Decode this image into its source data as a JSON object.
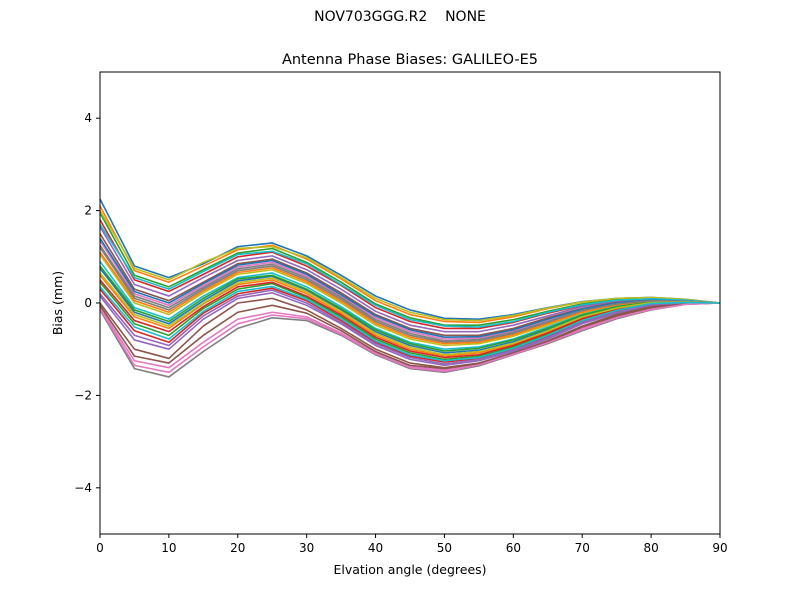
{
  "suptitle": "NOV703GGG.R2    NONE",
  "chart_data": {
    "type": "line",
    "title": "Antenna Phase Biases: GALILEO-E5",
    "xlabel": "Elvation angle (degrees)",
    "ylabel": "Bias (mm)",
    "xlim": [
      0,
      90
    ],
    "ylim": [
      -5,
      5
    ],
    "xticks": [
      0,
      10,
      20,
      30,
      40,
      50,
      60,
      70,
      80,
      90
    ],
    "yticks": [
      -4,
      -2,
      0,
      2,
      4
    ],
    "ytick_labels": [
      "−4",
      "−2",
      "0",
      "2",
      "4"
    ],
    "grid": false,
    "legend": "none",
    "x": [
      0,
      5,
      10,
      15,
      20,
      25,
      30,
      35,
      40,
      45,
      50,
      55,
      60,
      65,
      70,
      75,
      80,
      85,
      90
    ],
    "colors": [
      "#1f77b4",
      "#ff7f0e",
      "#2ca02c",
      "#d62728",
      "#9467bd",
      "#8c564b",
      "#e377c2",
      "#7f7f7f",
      "#bcbd22",
      "#17becf"
    ],
    "series": [
      {
        "values": [
          2.25,
          0.8,
          0.55,
          0.85,
          1.22,
          1.3,
          1.02,
          0.6,
          0.15,
          -0.15,
          -0.33,
          -0.35,
          -0.25,
          -0.1,
          0.03,
          0.1,
          0.12,
          0.08,
          0.0
        ]
      },
      {
        "values": [
          2.1,
          0.7,
          0.45,
          0.8,
          1.15,
          1.25,
          0.95,
          0.52,
          0.05,
          -0.25,
          -0.4,
          -0.42,
          -0.3,
          -0.12,
          0.02,
          0.09,
          0.11,
          0.07,
          0.0
        ]
      },
      {
        "values": [
          1.95,
          0.6,
          0.35,
          0.72,
          1.08,
          1.18,
          0.88,
          0.45,
          -0.02,
          -0.32,
          -0.48,
          -0.48,
          -0.36,
          -0.18,
          -0.02,
          0.07,
          0.1,
          0.06,
          0.0
        ]
      },
      {
        "values": [
          1.8,
          0.5,
          0.25,
          0.62,
          1.0,
          1.1,
          0.8,
          0.38,
          -0.1,
          -0.4,
          -0.55,
          -0.55,
          -0.42,
          -0.22,
          -0.05,
          0.05,
          0.09,
          0.06,
          0.0
        ]
      },
      {
        "values": [
          1.65,
          0.4,
          0.15,
          0.55,
          0.92,
          1.02,
          0.72,
          0.3,
          -0.18,
          -0.48,
          -0.62,
          -0.62,
          -0.48,
          -0.28,
          -0.08,
          0.03,
          0.08,
          0.05,
          0.0
        ]
      },
      {
        "values": [
          1.5,
          0.3,
          0.05,
          0.45,
          0.85,
          0.95,
          0.65,
          0.22,
          -0.25,
          -0.55,
          -0.7,
          -0.7,
          -0.55,
          -0.32,
          -0.12,
          0.01,
          0.07,
          0.05,
          0.0
        ]
      },
      {
        "values": [
          1.35,
          0.2,
          -0.05,
          0.38,
          0.78,
          0.88,
          0.58,
          0.15,
          -0.32,
          -0.62,
          -0.78,
          -0.76,
          -0.6,
          -0.38,
          -0.15,
          -0.01,
          0.06,
          0.04,
          0.0
        ]
      },
      {
        "values": [
          1.2,
          0.1,
          -0.15,
          0.3,
          0.7,
          0.8,
          0.5,
          0.08,
          -0.4,
          -0.7,
          -0.85,
          -0.82,
          -0.66,
          -0.42,
          -0.18,
          -0.03,
          0.05,
          0.04,
          0.0
        ]
      },
      {
        "values": [
          1.05,
          0.0,
          -0.25,
          0.22,
          0.62,
          0.72,
          0.42,
          0.0,
          -0.48,
          -0.78,
          -0.92,
          -0.88,
          -0.72,
          -0.48,
          -0.22,
          -0.05,
          0.04,
          0.03,
          0.0
        ]
      },
      {
        "values": [
          0.9,
          -0.1,
          -0.35,
          0.15,
          0.55,
          0.65,
          0.35,
          -0.08,
          -0.55,
          -0.85,
          -1.0,
          -0.95,
          -0.78,
          -0.52,
          -0.25,
          -0.07,
          0.03,
          0.03,
          0.0
        ]
      },
      {
        "values": [
          0.75,
          -0.2,
          -0.45,
          0.05,
          0.48,
          0.58,
          0.28,
          -0.15,
          -0.62,
          -0.92,
          -1.08,
          -1.02,
          -0.84,
          -0.58,
          -0.28,
          -0.1,
          0.02,
          0.02,
          0.0
        ]
      },
      {
        "values": [
          0.6,
          -0.3,
          -0.55,
          -0.02,
          0.4,
          0.5,
          0.2,
          -0.22,
          -0.7,
          -1.0,
          -1.15,
          -1.08,
          -0.9,
          -0.62,
          -0.32,
          -0.12,
          0.01,
          0.02,
          0.0
        ]
      },
      {
        "values": [
          0.45,
          -0.45,
          -0.7,
          -0.12,
          0.3,
          0.42,
          0.12,
          -0.3,
          -0.78,
          -1.08,
          -1.22,
          -1.15,
          -0.95,
          -0.68,
          -0.35,
          -0.15,
          0.0,
          0.01,
          0.0
        ]
      },
      {
        "values": [
          0.3,
          -0.6,
          -0.85,
          -0.22,
          0.2,
          0.32,
          0.05,
          -0.38,
          -0.85,
          -1.15,
          -1.28,
          -1.2,
          -1.0,
          -0.72,
          -0.4,
          -0.18,
          -0.02,
          0.01,
          0.0
        ]
      },
      {
        "values": [
          0.15,
          -0.8,
          -1.0,
          -0.35,
          0.1,
          0.22,
          -0.05,
          -0.45,
          -0.92,
          -1.22,
          -1.35,
          -1.25,
          -1.05,
          -0.78,
          -0.45,
          -0.22,
          -0.05,
          0.0,
          0.0
        ]
      },
      {
        "values": [
          0.0,
          -1.0,
          -1.2,
          -0.5,
          0.0,
          0.1,
          -0.15,
          -0.55,
          -1.0,
          -1.3,
          -1.4,
          -1.3,
          -1.08,
          -0.82,
          -0.5,
          -0.25,
          -0.08,
          -0.01,
          0.0
        ]
      },
      {
        "values": [
          -0.1,
          -1.25,
          -1.4,
          -0.85,
          -0.35,
          -0.2,
          -0.3,
          -0.65,
          -1.08,
          -1.38,
          -1.45,
          -1.32,
          -1.1,
          -0.85,
          -0.55,
          -0.3,
          -0.12,
          -0.02,
          0.0
        ]
      },
      {
        "values": [
          -0.15,
          -1.42,
          -1.6,
          -1.05,
          -0.55,
          -0.32,
          -0.38,
          -0.7,
          -1.12,
          -1.42,
          -1.5,
          -1.36,
          -1.12,
          -0.88,
          -0.6,
          -0.34,
          -0.15,
          -0.03,
          0.0
        ]
      },
      {
        "values": [
          2.0,
          0.75,
          0.5,
          0.88,
          1.18,
          1.22,
          0.98,
          0.55,
          0.1,
          -0.2,
          -0.36,
          -0.38,
          -0.27,
          -0.11,
          0.02,
          0.1,
          0.12,
          0.08,
          0.0
        ]
      },
      {
        "values": [
          1.7,
          0.55,
          0.3,
          0.68,
          1.05,
          1.12,
          0.85,
          0.4,
          -0.05,
          -0.36,
          -0.5,
          -0.52,
          -0.4,
          -0.2,
          -0.04,
          0.06,
          0.09,
          0.06,
          0.0
        ]
      },
      {
        "values": [
          1.4,
          0.25,
          0.0,
          0.42,
          0.82,
          0.92,
          0.62,
          0.18,
          -0.28,
          -0.58,
          -0.74,
          -0.73,
          -0.58,
          -0.35,
          -0.13,
          0.0,
          0.06,
          0.04,
          0.0
        ]
      },
      {
        "values": [
          1.1,
          0.05,
          -0.2,
          0.26,
          0.66,
          0.76,
          0.46,
          0.04,
          -0.44,
          -0.74,
          -0.88,
          -0.85,
          -0.69,
          -0.45,
          -0.2,
          -0.04,
          0.04,
          0.03,
          0.0
        ]
      },
      {
        "values": [
          0.8,
          -0.15,
          -0.4,
          0.1,
          0.52,
          0.6,
          0.3,
          -0.12,
          -0.58,
          -0.88,
          -1.04,
          -0.98,
          -0.8,
          -0.55,
          -0.26,
          -0.08,
          0.02,
          0.02,
          0.0
        ]
      },
      {
        "values": [
          0.5,
          -0.38,
          -0.62,
          -0.08,
          0.35,
          0.45,
          0.15,
          -0.26,
          -0.74,
          -1.04,
          -1.18,
          -1.12,
          -0.92,
          -0.65,
          -0.34,
          -0.14,
          0.0,
          0.01,
          0.0
        ]
      },
      {
        "values": [
          0.2,
          -0.7,
          -0.92,
          -0.28,
          0.15,
          0.28,
          0.0,
          -0.42,
          -0.88,
          -1.18,
          -1.32,
          -1.22,
          -1.02,
          -0.75,
          -0.42,
          -0.2,
          -0.04,
          0.0,
          0.0
        ]
      },
      {
        "values": [
          -0.05,
          -1.15,
          -1.3,
          -0.7,
          -0.2,
          -0.05,
          -0.22,
          -0.6,
          -1.05,
          -1.35,
          -1.42,
          -1.31,
          -1.09,
          -0.84,
          -0.52,
          -0.28,
          -0.1,
          -0.02,
          0.0
        ]
      },
      {
        "values": [
          -0.12,
          -1.35,
          -1.5,
          -0.95,
          -0.45,
          -0.26,
          -0.34,
          -0.68,
          -1.1,
          -1.4,
          -1.48,
          -1.34,
          -1.11,
          -0.86,
          -0.58,
          -0.32,
          -0.14,
          -0.03,
          0.0
        ]
      },
      {
        "values": [
          1.25,
          0.15,
          -0.1,
          0.34,
          0.74,
          0.84,
          0.54,
          0.12,
          -0.36,
          -0.66,
          -0.82,
          -0.79,
          -0.63,
          -0.4,
          -0.16,
          -0.02,
          0.05,
          0.04,
          0.0
        ]
      },
      {
        "values": [
          0.65,
          -0.25,
          -0.5,
          0.0,
          0.44,
          0.54,
          0.24,
          -0.18,
          -0.66,
          -0.96,
          -1.12,
          -1.05,
          -0.87,
          -0.6,
          -0.3,
          -0.11,
          0.01,
          0.02,
          0.0
        ]
      },
      {
        "values": [
          0.35,
          -0.52,
          -0.78,
          -0.18,
          0.25,
          0.36,
          0.08,
          -0.34,
          -0.82,
          -1.12,
          -1.25,
          -1.18,
          -0.98,
          -0.7,
          -0.38,
          -0.16,
          -0.01,
          0.01,
          0.0
        ]
      }
    ]
  }
}
